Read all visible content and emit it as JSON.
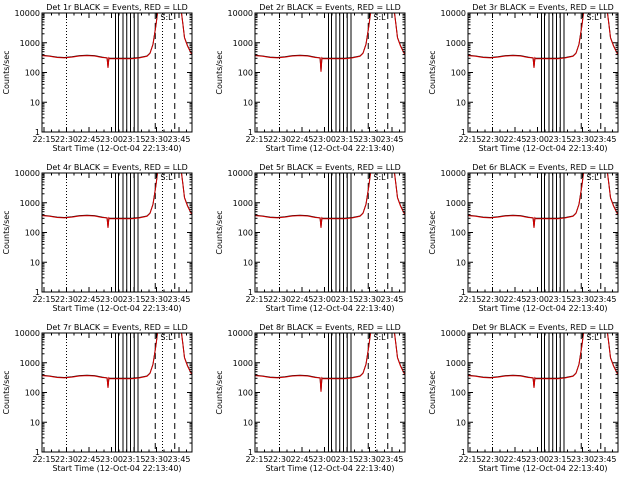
{
  "chart_data": {
    "type": "line",
    "layout": "3x3 grid",
    "colors": {
      "events": "#000000",
      "lld": "#d40000"
    },
    "shared": {
      "xlabel": "Start Time (12-Oct-04 22:13:40)",
      "ylabel": "Counts/sec",
      "x_tick_labels": [
        "22:15",
        "22:30",
        "22:45",
        "23:00",
        "23:15",
        "23:30",
        "23:45"
      ],
      "x_ticks_min": [
        1.33,
        16.33,
        31.33,
        46.33,
        61.33,
        76.33,
        91.33
      ],
      "xlim_minutes_after_start": [
        0,
        100
      ],
      "y_scale": "log",
      "ylim": [
        1,
        10000
      ],
      "y_tick_values": [
        1,
        10,
        100,
        1000,
        10000
      ],
      "y_tick_labels": [
        "1",
        "10",
        "100",
        "1000",
        "10000"
      ],
      "grid": false,
      "annotation": "S:L",
      "annotation_x_min": 83,
      "annotation_y": 10000,
      "dotted_lines_min": [
        16.33,
        80.33
      ],
      "dashed_lines_min": [
        75.5,
        88.5
      ],
      "solid_lines_min": [
        49,
        51,
        54,
        56.5,
        59,
        61.5,
        64
      ]
    },
    "series_names": [
      "Events",
      "LLD"
    ],
    "panels": [
      {
        "title": "Det 1r BLACK = Events, RED = LLD",
        "dip_min": 44,
        "dip_value": 150
      },
      {
        "title": "Det 2r BLACK = Events, RED = LLD",
        "dip_min": 44,
        "dip_value": 110
      },
      {
        "title": "Det 3r BLACK = Events, RED = LLD",
        "dip_min": 44,
        "dip_value": 150
      },
      {
        "title": "Det 4r BLACK = Events, RED = LLD",
        "dip_min": 44,
        "dip_value": 150
      },
      {
        "title": "Det 5r BLACK = Events, RED = LLD",
        "dip_min": 44,
        "dip_value": 150
      },
      {
        "title": "Det 6r BLACK = Events, RED = LLD",
        "dip_min": 44,
        "dip_value": 150
      },
      {
        "title": "Det 7r BLACK = Events, RED = LLD",
        "dip_min": 44,
        "dip_value": 150
      },
      {
        "title": "Det 8r BLACK = Events, RED = LLD",
        "dip_min": 44,
        "dip_value": 110
      },
      {
        "title": "Det 9r BLACK = Events, RED = LLD",
        "dip_min": 44,
        "dip_value": 150
      }
    ],
    "series": [
      {
        "name": "Events",
        "x": [
          0,
          5,
          10,
          15,
          20,
          25,
          30,
          35,
          40,
          45,
          50,
          55,
          60,
          65,
          70,
          72,
          74,
          76,
          77,
          78,
          80,
          82,
          85,
          88,
          89,
          90,
          91,
          92,
          93,
          94,
          95,
          97,
          99,
          100
        ],
        "y": [
          380,
          360,
          330,
          320,
          340,
          370,
          380,
          370,
          330,
          300,
          300,
          300,
          300,
          320,
          360,
          450,
          900,
          4000,
          10000,
          10000,
          10000,
          10000,
          10000,
          10000,
          10000,
          10000,
          10000,
          10000,
          10000,
          4000,
          1500,
          800,
          500,
          400
        ]
      },
      {
        "name": "LLD",
        "x": [
          0,
          5,
          10,
          15,
          20,
          25,
          30,
          35,
          40,
          45,
          50,
          55,
          60,
          65,
          70,
          72,
          74,
          76,
          77,
          78,
          80,
          82,
          85,
          88,
          89,
          90,
          91,
          92,
          93,
          94,
          95,
          97,
          99,
          100
        ],
        "y": [
          370,
          350,
          320,
          310,
          330,
          360,
          370,
          360,
          320,
          290,
          290,
          290,
          290,
          310,
          350,
          440,
          880,
          3900,
          10000,
          10000,
          10000,
          10000,
          10000,
          10000,
          10000,
          10000,
          10000,
          10000,
          10000,
          3900,
          1450,
          780,
          480,
          390
        ]
      }
    ]
  }
}
